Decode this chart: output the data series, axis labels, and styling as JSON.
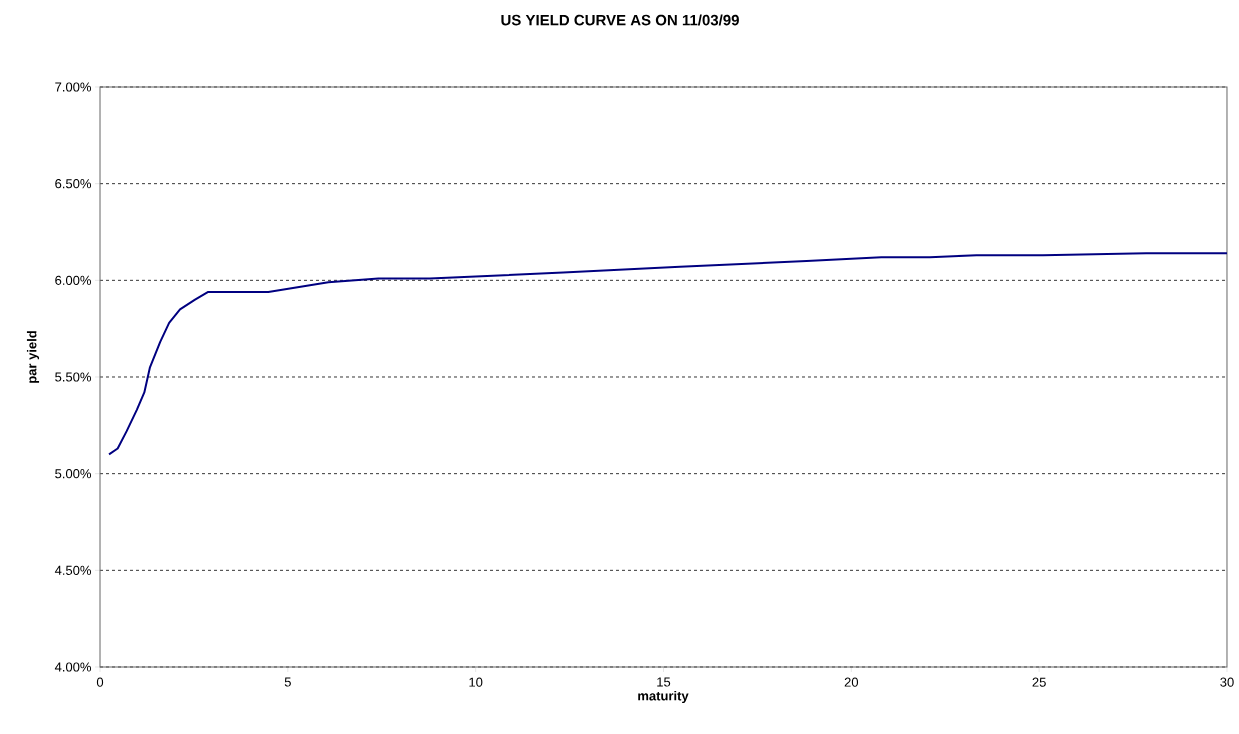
{
  "chart_data": {
    "type": "line",
    "title": "US YIELD CURVE AS ON 11/03/99",
    "xlabel": "maturity",
    "ylabel": "par yield",
    "x": [
      0.24,
      0.47,
      0.71,
      0.98,
      1.18,
      1.33,
      1.6,
      1.84,
      2.13,
      2.53,
      2.88,
      3.24,
      4.48,
      6.08,
      7.41,
      8.78,
      10.0,
      12.33,
      15.44,
      18.81,
      19.87,
      20.8,
      22.09,
      23.33,
      25.1,
      27.85,
      30
    ],
    "series": [
      {
        "color": "#000080",
        "values": [
          5.1,
          5.13,
          5.22,
          5.33,
          5.42,
          5.55,
          5.68,
          5.78,
          5.85,
          5.9,
          5.94,
          5.94,
          5.94,
          5.99,
          6.01,
          6.01,
          6.02,
          6.04,
          6.07,
          6.1,
          6.11,
          6.12,
          6.12,
          6.13,
          6.13,
          6.14,
          6.14
        ]
      }
    ],
    "xlim": [
      0,
      30
    ],
    "xticks": [
      0,
      5,
      10,
      15,
      20,
      25,
      30
    ],
    "ylim": [
      4,
      7
    ],
    "yticks": [
      {
        "value": 4,
        "label": "4.00%"
      },
      {
        "value": 4.5,
        "label": "4.50%"
      },
      {
        "value": 5,
        "label": "5.00%"
      },
      {
        "value": 5.5,
        "label": "5.50%"
      },
      {
        "value": 6,
        "label": "6.00%"
      },
      {
        "value": 6.5,
        "label": "6.50%"
      },
      {
        "value": 7,
        "label": "7.00%"
      }
    ],
    "grid": "y",
    "marker": "none",
    "line_style": "solid"
  }
}
